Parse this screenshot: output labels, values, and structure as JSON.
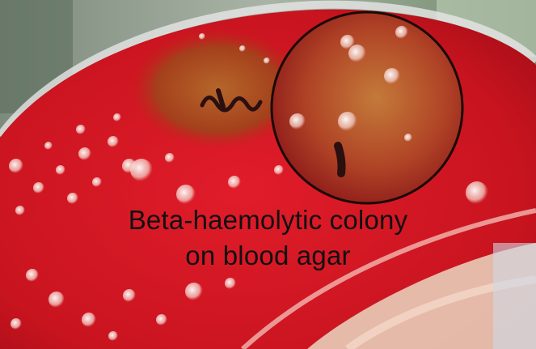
{
  "photo": {
    "subject": "blood agar petri dish with bacterial colonies and magnified inset",
    "colors": {
      "agar_red": "#d01826",
      "haemolysis_zone": "#a8481c",
      "background_gray": "#9aa39a",
      "glove": "#e7c3b0"
    }
  },
  "caption": {
    "line1": "Beta-haemolytic colony",
    "line2": "on blood agar"
  }
}
